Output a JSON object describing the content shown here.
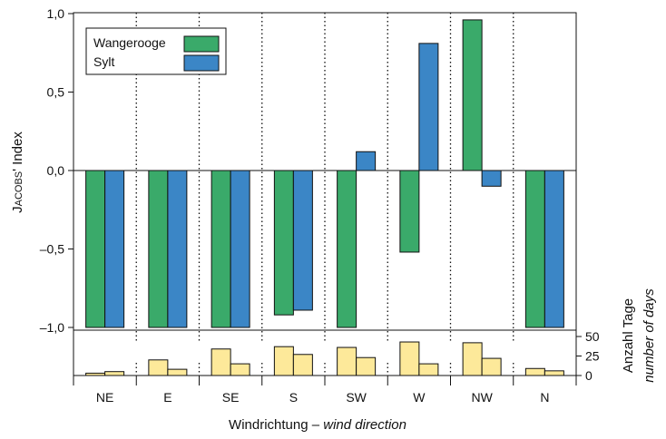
{
  "chart_data": [
    {
      "type": "bar",
      "categories": [
        "NE",
        "E",
        "SE",
        "S",
        "SW",
        "W",
        "NW",
        "N"
      ],
      "series": [
        {
          "name": "Wangerooge",
          "values": [
            -1.0,
            -1.0,
            -1.0,
            -0.92,
            -1.0,
            -0.52,
            0.96,
            -1.0
          ]
        },
        {
          "name": "Sylt",
          "values": [
            -1.0,
            -1.0,
            -1.0,
            -0.89,
            0.12,
            0.81,
            -0.1,
            -1.0
          ]
        }
      ],
      "ylabel_main": "Jacobs' Index",
      "y_ticks": [
        "1,0",
        "0,5",
        "0,0",
        "–0,5",
        "–1,0"
      ],
      "y_tick_values": [
        1.0,
        0.5,
        0.0,
        -0.5,
        -1.0
      ],
      "ylim": [
        -1.1,
        1.0
      ]
    },
    {
      "type": "bar",
      "categories": [
        "NE",
        "E",
        "SE",
        "S",
        "SW",
        "W",
        "NW",
        "N"
      ],
      "series": [
        {
          "name": "Wangerooge",
          "values": [
            3,
            20,
            34,
            37,
            36,
            43,
            42,
            9
          ]
        },
        {
          "name": "Sylt",
          "values": [
            5,
            8,
            15,
            27,
            23,
            15,
            22,
            6
          ]
        }
      ],
      "ylabel_line1": "Anzahl Tage",
      "ylabel_line2": "number of days",
      "y_ticks": [
        "50",
        "25",
        "0"
      ],
      "y_tick_values": [
        50,
        25,
        0
      ],
      "ylim": [
        0,
        58
      ]
    }
  ],
  "xlabel_main": "Windrichtung – ",
  "xlabel_italic": "wind direction",
  "legend": {
    "position": "top-left",
    "items": [
      {
        "label": "Wangerooge",
        "color": "#3aaa6a"
      },
      {
        "label": "Sylt",
        "color": "#3b86c6"
      }
    ]
  },
  "colors": {
    "days_bar": "#fde99a",
    "text": "#111111"
  }
}
